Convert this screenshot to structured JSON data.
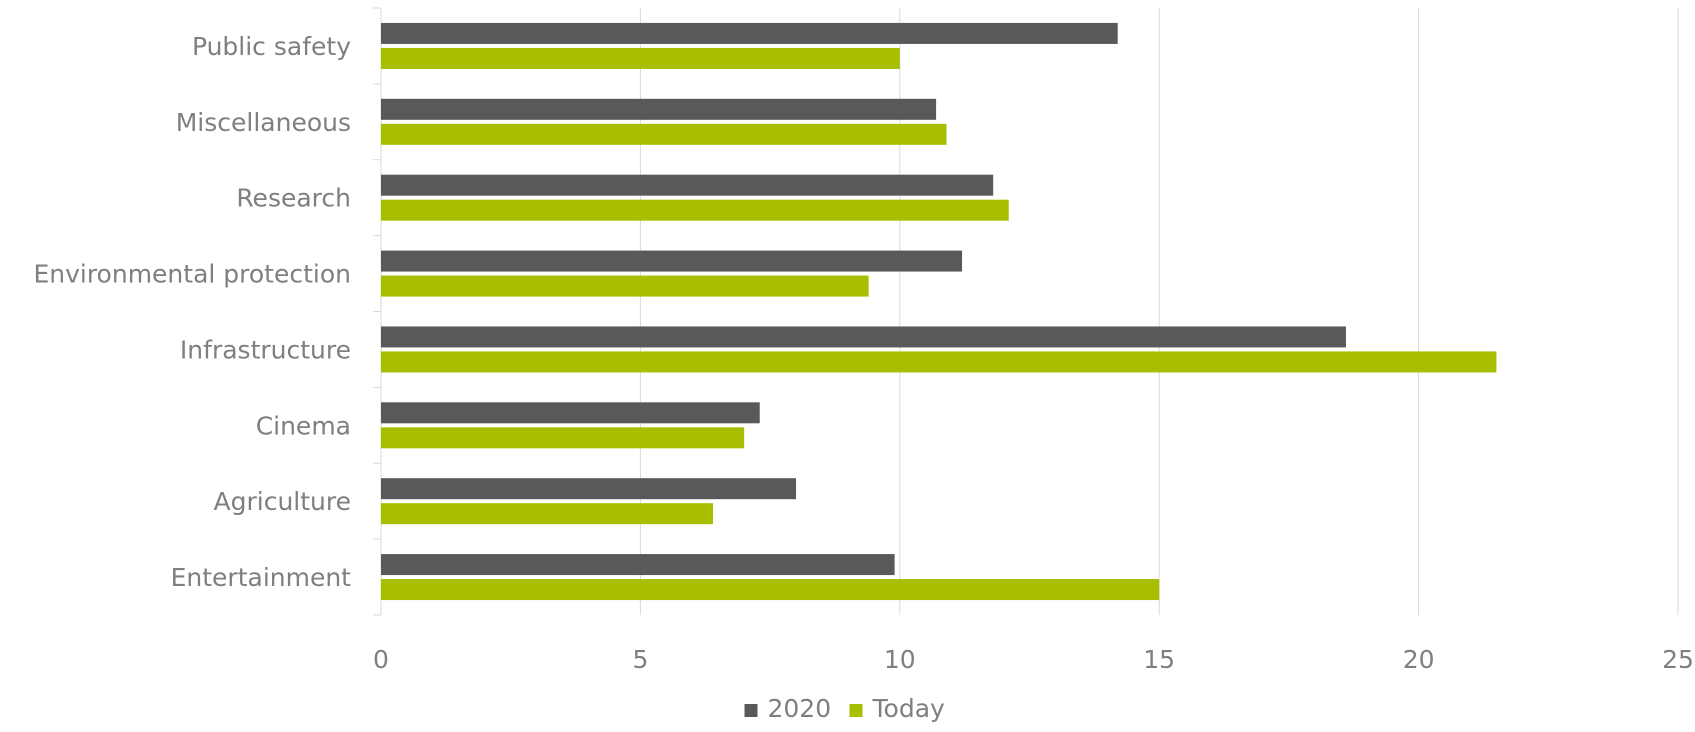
{
  "chart_data": {
    "type": "bar",
    "orientation": "horizontal",
    "categories": [
      "Public safety",
      "Miscellaneous",
      "Research",
      "Environmental protection",
      "Infrastructure",
      "Cinema",
      "Agriculture",
      "Entertainment"
    ],
    "series": [
      {
        "name": "2020",
        "color": "#59595b",
        "values": [
          14.2,
          10.7,
          11.8,
          11.2,
          18.6,
          7.3,
          8.0,
          9.9
        ]
      },
      {
        "name": "Today",
        "color": "#a8bf00",
        "values": [
          10.0,
          10.9,
          12.1,
          9.4,
          21.5,
          7.0,
          6.4,
          15.0
        ]
      }
    ],
    "x_ticks": [
      "0",
      "5",
      "10",
      "15",
      "20",
      "25"
    ],
    "xlim": [
      0,
      25
    ],
    "grid": "vertical",
    "legend": "bottom-center",
    "title": "",
    "xlabel": "",
    "ylabel": ""
  }
}
